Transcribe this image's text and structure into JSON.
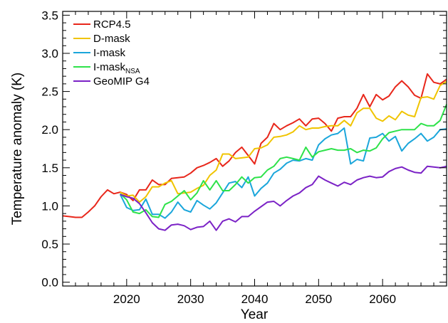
{
  "chart_data": {
    "type": "line",
    "title": "",
    "xlabel": "Year",
    "ylabel": "Temperature anomaly (K)",
    "xlim": [
      2010,
      2070
    ],
    "ylim": [
      -0.05,
      3.55
    ],
    "xticks": [
      2020,
      2030,
      2040,
      2050,
      2060
    ],
    "xtick_labels": [
      "2020",
      "2030",
      "2040",
      "2050",
      "2060"
    ],
    "yticks": [
      0.0,
      0.5,
      1.0,
      1.5,
      2.0,
      2.5,
      3.0,
      3.5
    ],
    "ytick_labels": [
      "0.0",
      "0.5",
      "1.0",
      "1.5",
      "2.0",
      "2.5",
      "3.0",
      "3.5"
    ],
    "grid": false,
    "legend_position": "top-left",
    "series": [
      {
        "name": "RCP4.5",
        "color": "#e8271b",
        "x": [
          2010,
          2011,
          2012,
          2013,
          2014,
          2015,
          2016,
          2017,
          2018,
          2019,
          2020,
          2021,
          2022,
          2023,
          2024,
          2025,
          2026,
          2027,
          2028,
          2029,
          2030,
          2031,
          2032,
          2033,
          2034,
          2035,
          2036,
          2037,
          2038,
          2039,
          2040,
          2041,
          2042,
          2043,
          2044,
          2045,
          2046,
          2047,
          2048,
          2049,
          2050,
          2051,
          2052,
          2053,
          2054,
          2055,
          2056,
          2057,
          2058,
          2059,
          2060,
          2061,
          2062,
          2063,
          2064,
          2065,
          2066,
          2067,
          2068,
          2069,
          2070
        ],
        "y": [
          0.87,
          0.86,
          0.85,
          0.85,
          0.92,
          1.0,
          1.12,
          1.21,
          1.16,
          1.18,
          1.15,
          1.07,
          1.21,
          1.21,
          1.34,
          1.28,
          1.28,
          1.36,
          1.37,
          1.38,
          1.43,
          1.5,
          1.53,
          1.57,
          1.62,
          1.52,
          1.59,
          1.7,
          1.77,
          1.66,
          1.55,
          1.82,
          1.9,
          2.08,
          2.0,
          2.05,
          2.09,
          2.14,
          2.05,
          2.14,
          2.15,
          2.08,
          1.98,
          2.15,
          2.17,
          2.17,
          2.28,
          2.46,
          2.3,
          2.46,
          2.39,
          2.44,
          2.56,
          2.64,
          2.56,
          2.45,
          2.41,
          2.73,
          2.62,
          2.6,
          2.66
        ]
      },
      {
        "name": "D-mask",
        "color": "#f0c400",
        "x": [
          2019,
          2020,
          2021,
          2022,
          2023,
          2024,
          2025,
          2026,
          2027,
          2028,
          2029,
          2030,
          2031,
          2032,
          2033,
          2034,
          2035,
          2036,
          2037,
          2038,
          2039,
          2040,
          2041,
          2042,
          2043,
          2044,
          2045,
          2046,
          2047,
          2048,
          2049,
          2050,
          2051,
          2052,
          2053,
          2054,
          2055,
          2056,
          2057,
          2058,
          2059,
          2060,
          2061,
          2062,
          2063,
          2064,
          2065,
          2066,
          2067,
          2068,
          2069,
          2070
        ],
        "y": [
          1.18,
          1.13,
          1.14,
          1.05,
          1.12,
          1.25,
          1.25,
          1.3,
          1.33,
          1.16,
          1.17,
          1.18,
          1.23,
          1.27,
          1.4,
          1.47,
          1.68,
          1.68,
          1.62,
          1.63,
          1.64,
          1.75,
          1.76,
          1.8,
          1.9,
          1.91,
          1.93,
          1.97,
          2.05,
          2.0,
          2.02,
          2.02,
          2.04,
          2.05,
          2.05,
          2.12,
          2.05,
          2.22,
          2.28,
          2.28,
          2.15,
          2.11,
          2.18,
          2.13,
          2.24,
          2.19,
          2.17,
          2.42,
          2.43,
          2.4,
          2.58,
          2.63
        ]
      },
      {
        "name": "I-mask",
        "sub": "",
        "color": "#1ba6db",
        "x": [
          2019,
          2020,
          2021,
          2022,
          2023,
          2024,
          2025,
          2026,
          2027,
          2028,
          2029,
          2030,
          2031,
          2032,
          2033,
          2034,
          2035,
          2036,
          2037,
          2038,
          2039,
          2040,
          2041,
          2042,
          2043,
          2044,
          2045,
          2046,
          2047,
          2048,
          2049,
          2050,
          2051,
          2052,
          2053,
          2054,
          2055,
          2056,
          2057,
          2058,
          2059,
          2060,
          2061,
          2062,
          2063,
          2064,
          2065,
          2066,
          2067,
          2068,
          2069,
          2070
        ],
        "y": [
          1.15,
          0.98,
          0.94,
          0.95,
          1.09,
          0.89,
          0.89,
          0.84,
          0.92,
          1.05,
          0.95,
          0.92,
          1.07,
          1.01,
          0.96,
          1.04,
          1.17,
          1.3,
          1.32,
          1.24,
          1.38,
          1.13,
          1.23,
          1.3,
          1.43,
          1.48,
          1.56,
          1.6,
          1.59,
          1.62,
          1.6,
          1.8,
          1.88,
          1.93,
          1.95,
          2.02,
          1.55,
          1.61,
          1.59,
          1.89,
          1.9,
          1.95,
          1.85,
          1.91,
          1.72,
          1.82,
          1.88,
          1.95,
          1.85,
          1.9,
          2.0,
          2.01
        ]
      },
      {
        "name": "I-mask",
        "sub": "NSA",
        "color": "#2ee24a",
        "x": [
          2019,
          2020,
          2021,
          2022,
          2023,
          2024,
          2025,
          2026,
          2027,
          2028,
          2029,
          2030,
          2031,
          2032,
          2033,
          2034,
          2035,
          2036,
          2037,
          2038,
          2039,
          2040,
          2041,
          2042,
          2043,
          2044,
          2045,
          2046,
          2047,
          2048,
          2049,
          2050,
          2051,
          2052,
          2053,
          2054,
          2055,
          2056,
          2057,
          2058,
          2059,
          2060,
          2061,
          2062,
          2063,
          2064,
          2065,
          2066,
          2067,
          2068,
          2069,
          2070
        ],
        "y": [
          1.16,
          1.08,
          0.92,
          0.9,
          0.95,
          0.86,
          0.85,
          1.02,
          1.06,
          1.13,
          1.2,
          1.08,
          1.17,
          1.33,
          1.21,
          1.33,
          1.2,
          1.2,
          1.28,
          1.38,
          1.3,
          1.37,
          1.38,
          1.47,
          1.52,
          1.62,
          1.64,
          1.62,
          1.6,
          1.77,
          1.64,
          1.71,
          1.73,
          1.75,
          1.73,
          1.73,
          1.75,
          1.7,
          1.73,
          1.72,
          1.76,
          1.88,
          1.96,
          1.98,
          2.0,
          2.0,
          2.0,
          2.08,
          2.05,
          2.05,
          2.12,
          2.33
        ]
      },
      {
        "name": "GeoMIP G4",
        "color": "#7b22c6",
        "x": [
          2019,
          2020,
          2021,
          2022,
          2023,
          2024,
          2025,
          2026,
          2027,
          2028,
          2029,
          2030,
          2031,
          2032,
          2033,
          2034,
          2035,
          2036,
          2037,
          2038,
          2039,
          2040,
          2041,
          2042,
          2043,
          2044,
          2045,
          2046,
          2047,
          2048,
          2049,
          2050,
          2051,
          2052,
          2053,
          2054,
          2055,
          2056,
          2057,
          2058,
          2059,
          2060,
          2061,
          2062,
          2063,
          2064,
          2065,
          2066,
          2067,
          2068,
          2069,
          2070
        ],
        "y": [
          1.15,
          1.12,
          1.1,
          1.03,
          0.91,
          0.78,
          0.7,
          0.68,
          0.75,
          0.76,
          0.74,
          0.69,
          0.72,
          0.73,
          0.8,
          0.68,
          0.8,
          0.83,
          0.79,
          0.86,
          0.86,
          0.93,
          0.99,
          1.05,
          1.06,
          1.0,
          1.07,
          1.13,
          1.17,
          1.24,
          1.28,
          1.39,
          1.34,
          1.3,
          1.26,
          1.31,
          1.28,
          1.34,
          1.37,
          1.39,
          1.37,
          1.38,
          1.45,
          1.49,
          1.51,
          1.47,
          1.44,
          1.43,
          1.52,
          1.51,
          1.5,
          1.52
        ]
      }
    ]
  }
}
